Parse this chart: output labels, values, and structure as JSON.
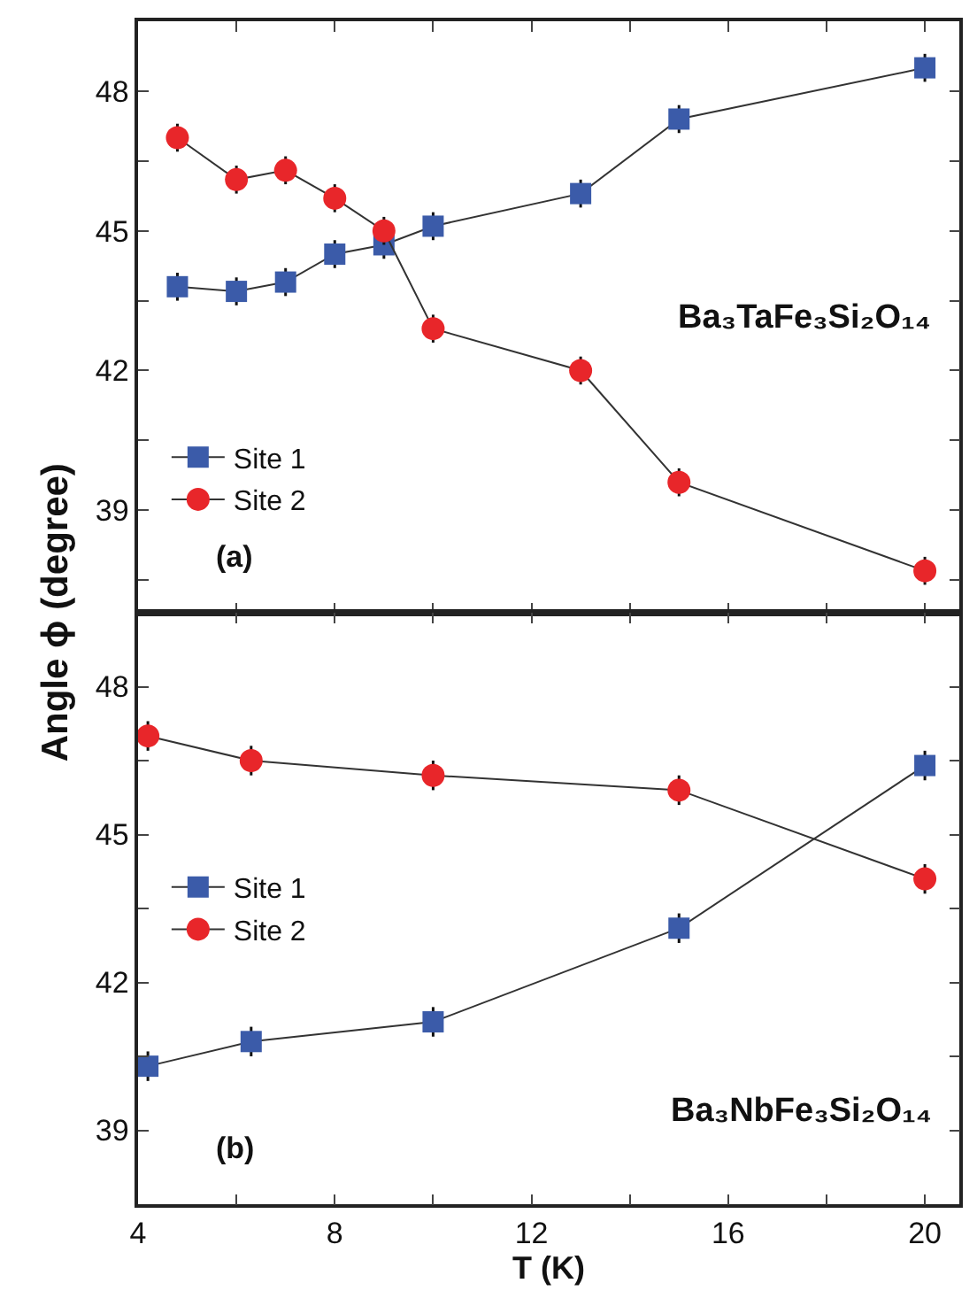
{
  "chart_data": [
    {
      "type": "line",
      "ylabel": "Angle ϕ (degree)",
      "annotations": [
        "Ba₃TaFe₃Si₂O₁₄",
        "(a)"
      ],
      "legend": "bottom left",
      "line_style": "solid",
      "tick_labels": "y",
      "xlim": [
        4,
        20.7
      ],
      "xticks": [
        {
          "value": 4,
          "label": null
        },
        {
          "value": 6,
          "label": null
        },
        {
          "value": 8,
          "label": null
        },
        {
          "value": 10,
          "label": null
        },
        {
          "value": 12,
          "label": null
        },
        {
          "value": 14,
          "label": null
        },
        {
          "value": 16,
          "label": null
        },
        {
          "value": 18,
          "label": null
        },
        {
          "value": 20,
          "label": null
        }
      ],
      "ylim": [
        36.8,
        49.5
      ],
      "yticks": [
        {
          "value": 37.5,
          "label": null
        },
        39,
        {
          "value": 40.5,
          "label": null
        },
        42,
        {
          "value": 43.5,
          "label": null
        },
        45,
        {
          "value": 46.5,
          "label": null
        },
        48
      ],
      "series": [
        {
          "name": "Site 1",
          "color": "#3b5ba9",
          "marker": "square",
          "x": [
            4.8,
            6.0,
            7.0,
            8.0,
            9.0,
            10.0,
            13.0,
            15.0,
            20.0
          ],
          "values": [
            43.8,
            43.7,
            43.9,
            44.5,
            44.7,
            45.1,
            45.8,
            47.4,
            48.5
          ],
          "errors": [
            0.3,
            0.3,
            0.3,
            0.3,
            0.3,
            0.3,
            0.3,
            0.3,
            0.3
          ]
        },
        {
          "name": "Site 2",
          "color": "#e8262a",
          "marker": "circle",
          "x": [
            4.8,
            6.0,
            7.0,
            8.0,
            9.0,
            10.0,
            13.0,
            15.0,
            20.0
          ],
          "values": [
            47.0,
            46.1,
            46.3,
            45.7,
            45.0,
            42.9,
            42.0,
            39.6,
            37.7
          ],
          "errors": [
            0.3,
            0.3,
            0.3,
            0.3,
            0.3,
            0.3,
            0.3,
            0.3,
            0.3
          ]
        }
      ]
    },
    {
      "type": "line",
      "xlabel": "T (K)",
      "annotations": [
        "Ba₃NbFe₃Si₂O₁₄",
        "(b)"
      ],
      "legend": "left",
      "line_style": "solid",
      "xlim": [
        4,
        20.7
      ],
      "xticks": [
        4,
        {
          "value": 6,
          "label": null
        },
        8,
        {
          "value": 10,
          "label": null
        },
        12,
        {
          "value": 14,
          "label": null
        },
        16,
        {
          "value": 18,
          "label": null
        },
        20
      ],
      "ylim": [
        37.5,
        49.5
      ],
      "yticks": [
        39,
        {
          "value": 40.5,
          "label": null
        },
        42,
        {
          "value": 43.5,
          "label": null
        },
        45,
        {
          "value": 46.5,
          "label": null
        },
        48
      ],
      "series": [
        {
          "name": "Site 1",
          "color": "#3b5ba9",
          "marker": "square",
          "x": [
            4.2,
            6.3,
            10.0,
            15.0,
            20.0
          ],
          "values": [
            40.3,
            40.8,
            41.2,
            43.1,
            46.4
          ],
          "errors": [
            0.3,
            0.3,
            0.3,
            0.3,
            0.3
          ]
        },
        {
          "name": "Site 2",
          "color": "#e8262a",
          "marker": "circle",
          "x": [
            4.2,
            6.3,
            10.0,
            15.0,
            20.0
          ],
          "values": [
            47.0,
            46.5,
            46.2,
            45.9,
            44.1
          ],
          "errors": [
            0.3,
            0.3,
            0.3,
            0.3,
            0.3
          ]
        }
      ]
    }
  ]
}
